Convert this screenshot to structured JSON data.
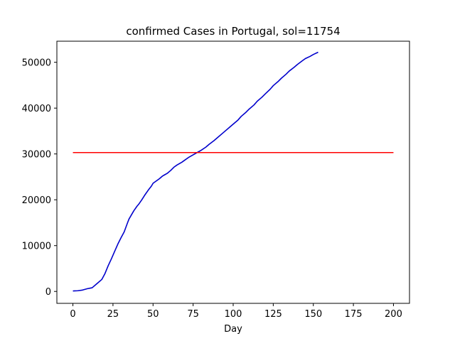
{
  "chart_data": {
    "type": "line",
    "title": "confirmed Cases in Portugal, sol=11754",
    "xlabel": "Day",
    "ylabel": "",
    "xlim": [
      -10,
      210
    ],
    "ylim": [
      -2600,
      54600
    ],
    "xticks": [
      0,
      25,
      50,
      75,
      100,
      125,
      150,
      175,
      200
    ],
    "xtick_labels": [
      "0",
      "25",
      "50",
      "75",
      "100",
      "125",
      "150",
      "175",
      "200"
    ],
    "yticks": [
      0,
      10000,
      20000,
      30000,
      40000,
      50000
    ],
    "ytick_labels": [
      "0",
      "10000",
      "20000",
      "30000",
      "40000",
      "50000"
    ],
    "grid": false,
    "legend": false,
    "series": [
      {
        "color": "#0000cc",
        "x": [
          0,
          3,
          6,
          9,
          12,
          15,
          18,
          20,
          22,
          24,
          26,
          28,
          30,
          32,
          34,
          35,
          36,
          38,
          40,
          41,
          43,
          45,
          47,
          49,
          50,
          52,
          54,
          56,
          57,
          59,
          61,
          63,
          65,
          68,
          70,
          72,
          75,
          78,
          80,
          83,
          85,
          88,
          90,
          93,
          95,
          98,
          100,
          103,
          105,
          108,
          110,
          113,
          115,
          118,
          120,
          123,
          125,
          128,
          130,
          133,
          135,
          138,
          140,
          143,
          145,
          148,
          150,
          153
        ],
        "y": [
          100,
          150,
          300,
          600,
          800,
          1700,
          2600,
          3900,
          5600,
          7100,
          8700,
          10300,
          11700,
          13000,
          14900,
          15800,
          16400,
          17600,
          18600,
          19000,
          20000,
          21100,
          22100,
          23000,
          23600,
          24100,
          24600,
          25200,
          25400,
          25800,
          26400,
          27100,
          27600,
          28200,
          28700,
          29200,
          29800,
          30400,
          30800,
          31500,
          32100,
          32900,
          33500,
          34400,
          35000,
          35900,
          36500,
          37400,
          38200,
          39100,
          39800,
          40700,
          41500,
          42400,
          43100,
          44100,
          44900,
          45800,
          46500,
          47400,
          48100,
          48900,
          49500,
          50300,
          50800,
          51300,
          51700,
          52200
        ]
      },
      {
        "color": "#ff0000",
        "x": [
          0,
          200
        ],
        "y": [
          30300,
          30300
        ]
      }
    ]
  }
}
